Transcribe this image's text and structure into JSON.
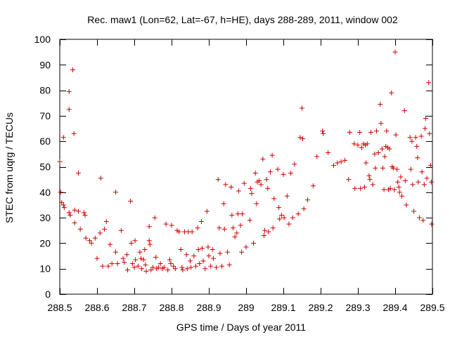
{
  "chart_data": {
    "type": "scatter",
    "title": "Rec. maw1 (Lon=62, Lat=-67, h=HE), days 288-289, 2011, window 002",
    "xlabel": "GPS time / Days of year 2011",
    "ylabel": "STEC from uqrg / TECUs",
    "xlim": [
      288.5,
      289.5
    ],
    "ylim": [
      0,
      100
    ],
    "xticks": [
      288.5,
      288.6,
      288.7,
      288.8,
      288.9,
      289.0,
      289.1,
      289.2,
      289.3,
      289.4,
      289.5
    ],
    "xtick_labels": [
      "288.5",
      "288.6",
      "288.7",
      "288.8",
      "288.9",
      "289",
      "289.1",
      "289.2",
      "289.3",
      "289.4",
      "289.5"
    ],
    "yticks": [
      0,
      10,
      20,
      30,
      40,
      50,
      60,
      70,
      80,
      90,
      100
    ],
    "ytick_labels": [
      "0",
      "10",
      "20",
      "30",
      "40",
      "50",
      "60",
      "70",
      "80",
      "90",
      "100"
    ],
    "grid": false,
    "marker": "+",
    "marker_color": "#cc0000",
    "points": [
      [
        288.5,
        52
      ],
      [
        288.502,
        40
      ],
      [
        288.505,
        36
      ],
      [
        288.51,
        61.5
      ],
      [
        288.51,
        35
      ],
      [
        288.512,
        34
      ],
      [
        288.525,
        79.5
      ],
      [
        288.525,
        72.5
      ],
      [
        288.525,
        32
      ],
      [
        288.528,
        31
      ],
      [
        288.535,
        88
      ],
      [
        288.538,
        63
      ],
      [
        288.54,
        33
      ],
      [
        288.54,
        28
      ],
      [
        288.55,
        47.5
      ],
      [
        288.55,
        32.5
      ],
      [
        288.555,
        25.5
      ],
      [
        288.565,
        32
      ],
      [
        288.568,
        31
      ],
      [
        288.57,
        22
      ],
      [
        288.58,
        21
      ],
      [
        288.585,
        20
      ],
      [
        288.595,
        22
      ],
      [
        288.6,
        14
      ],
      [
        288.608,
        24
      ],
      [
        288.61,
        45.5
      ],
      [
        288.615,
        11
      ],
      [
        288.62,
        25.5
      ],
      [
        288.625,
        28.5
      ],
      [
        288.63,
        11
      ],
      [
        288.635,
        19.5
      ],
      [
        288.64,
        12
      ],
      [
        288.65,
        40
      ],
      [
        288.65,
        16.5
      ],
      [
        288.655,
        12
      ],
      [
        288.665,
        25
      ],
      [
        288.67,
        14
      ],
      [
        288.673,
        12.5
      ],
      [
        288.68,
        15.5
      ],
      [
        288.682,
        9.5
      ],
      [
        288.69,
        36.5
      ],
      [
        288.692,
        20
      ],
      [
        288.695,
        12
      ],
      [
        288.7,
        10.5
      ],
      [
        288.702,
        21
      ],
      [
        288.703,
        13.5
      ],
      [
        288.71,
        11
      ],
      [
        288.715,
        16.5
      ],
      [
        288.718,
        14
      ],
      [
        288.72,
        10
      ],
      [
        288.725,
        13.5
      ],
      [
        288.728,
        17.5
      ],
      [
        288.73,
        11.5
      ],
      [
        288.732,
        9
      ],
      [
        288.74,
        26.5
      ],
      [
        288.74,
        21
      ],
      [
        288.742,
        19.5
      ],
      [
        288.745,
        9.5
      ],
      [
        288.75,
        10.5
      ],
      [
        288.755,
        30
      ],
      [
        288.758,
        14.5
      ],
      [
        288.76,
        10
      ],
      [
        288.765,
        10.5
      ],
      [
        288.77,
        12
      ],
      [
        288.775,
        10
      ],
      [
        288.78,
        10.5
      ],
      [
        288.785,
        27.5
      ],
      [
        288.79,
        9.5
      ],
      [
        288.795,
        13.5
      ],
      [
        288.798,
        12
      ],
      [
        288.8,
        27
      ],
      [
        288.805,
        11
      ],
      [
        288.81,
        10
      ],
      [
        288.815,
        25
      ],
      [
        288.82,
        24.5
      ],
      [
        288.825,
        17.5
      ],
      [
        288.828,
        10.5
      ],
      [
        288.83,
        9.5
      ],
      [
        288.835,
        24.5
      ],
      [
        288.84,
        15.5
      ],
      [
        288.842,
        10
      ],
      [
        288.845,
        24.5
      ],
      [
        288.85,
        13
      ],
      [
        288.852,
        10.5
      ],
      [
        288.855,
        24.5
      ],
      [
        288.86,
        15
      ],
      [
        288.865,
        11
      ],
      [
        288.87,
        26
      ],
      [
        288.872,
        17.5
      ],
      [
        288.875,
        12
      ],
      [
        288.88,
        28.5
      ],
      [
        288.882,
        18
      ],
      [
        288.885,
        13
      ],
      [
        288.89,
        10
      ],
      [
        288.895,
        32.5
      ],
      [
        288.898,
        18.5
      ],
      [
        288.9,
        15
      ],
      [
        288.905,
        11
      ],
      [
        288.91,
        17.5
      ],
      [
        288.912,
        14
      ],
      [
        288.92,
        10.5
      ],
      [
        288.925,
        45
      ],
      [
        288.928,
        26
      ],
      [
        288.93,
        16
      ],
      [
        288.935,
        11
      ],
      [
        288.94,
        35.5
      ],
      [
        288.942,
        25.5
      ],
      [
        288.945,
        43
      ],
      [
        288.95,
        16.5
      ],
      [
        288.955,
        11.5
      ],
      [
        288.96,
        42
      ],
      [
        288.962,
        31
      ],
      [
        288.965,
        26
      ],
      [
        288.97,
        22.5
      ],
      [
        288.975,
        24
      ],
      [
        288.978,
        31.5
      ],
      [
        288.98,
        40.5
      ],
      [
        288.985,
        27
      ],
      [
        288.988,
        16.5
      ],
      [
        288.99,
        31.5
      ],
      [
        288.995,
        43.5
      ],
      [
        289.0,
        18.5
      ],
      [
        289.01,
        29
      ],
      [
        289.012,
        41.5
      ],
      [
        289.015,
        39.5
      ],
      [
        289.02,
        20
      ],
      [
        289.025,
        47.5
      ],
      [
        289.028,
        35.5
      ],
      [
        289.03,
        44
      ],
      [
        289.035,
        44.5
      ],
      [
        289.04,
        43
      ],
      [
        289.045,
        53
      ],
      [
        289.048,
        23
      ],
      [
        289.05,
        25
      ],
      [
        289.055,
        45
      ],
      [
        289.058,
        41.5
      ],
      [
        289.06,
        24.5
      ],
      [
        289.065,
        48
      ],
      [
        289.07,
        54.5
      ],
      [
        289.072,
        26
      ],
      [
        289.075,
        37.5
      ],
      [
        289.085,
        49
      ],
      [
        289.088,
        34
      ],
      [
        289.09,
        29.5
      ],
      [
        289.095,
        31
      ],
      [
        289.1,
        47
      ],
      [
        289.102,
        30
      ],
      [
        289.11,
        38.5
      ],
      [
        289.115,
        27.5
      ],
      [
        289.12,
        47.5
      ],
      [
        289.125,
        30
      ],
      [
        289.13,
        51
      ],
      [
        289.14,
        31.5
      ],
      [
        289.145,
        61.5
      ],
      [
        289.15,
        73
      ],
      [
        289.152,
        61
      ],
      [
        289.155,
        33.5
      ],
      [
        289.165,
        37
      ],
      [
        289.18,
        42.5
      ],
      [
        289.19,
        54
      ],
      [
        289.205,
        64
      ],
      [
        289.207,
        63
      ],
      [
        289.22,
        55.5
      ],
      [
        289.235,
        50.5
      ],
      [
        289.245,
        51.5
      ],
      [
        289.255,
        52
      ],
      [
        289.265,
        52.5
      ],
      [
        289.275,
        45
      ],
      [
        289.278,
        63.5
      ],
      [
        289.29,
        59
      ],
      [
        289.292,
        41.5
      ],
      [
        289.3,
        58.5
      ],
      [
        289.305,
        63.5
      ],
      [
        289.307,
        41.5
      ],
      [
        289.31,
        57.5
      ],
      [
        289.315,
        59
      ],
      [
        289.318,
        42
      ],
      [
        289.32,
        58.5
      ],
      [
        289.322,
        51.5
      ],
      [
        289.325,
        59
      ],
      [
        289.33,
        46.5
      ],
      [
        289.332,
        45
      ],
      [
        289.335,
        63.5
      ],
      [
        289.34,
        43
      ],
      [
        289.345,
        55
      ],
      [
        289.347,
        49.5
      ],
      [
        289.35,
        64
      ],
      [
        289.355,
        55.5
      ],
      [
        289.36,
        74.5
      ],
      [
        289.362,
        67
      ],
      [
        289.365,
        57
      ],
      [
        289.367,
        49.5
      ],
      [
        289.37,
        41
      ],
      [
        289.372,
        54
      ],
      [
        289.375,
        58
      ],
      [
        289.377,
        64
      ],
      [
        289.38,
        57.5
      ],
      [
        289.382,
        41
      ],
      [
        289.385,
        57
      ],
      [
        289.387,
        41.5
      ],
      [
        289.39,
        79
      ],
      [
        289.392,
        50
      ],
      [
        289.395,
        49.5
      ],
      [
        289.398,
        41
      ],
      [
        289.4,
        95
      ],
      [
        289.402,
        62.5
      ],
      [
        289.405,
        49
      ],
      [
        289.407,
        44
      ],
      [
        289.41,
        42
      ],
      [
        289.412,
        40
      ],
      [
        289.415,
        46
      ],
      [
        289.418,
        38.5
      ],
      [
        289.425,
        72
      ],
      [
        289.427,
        44.5
      ],
      [
        289.43,
        35
      ],
      [
        289.44,
        61.5
      ],
      [
        289.442,
        49
      ],
      [
        289.445,
        60
      ],
      [
        289.447,
        43
      ],
      [
        289.45,
        32.5
      ],
      [
        289.455,
        61.5
      ],
      [
        289.458,
        58
      ],
      [
        289.46,
        53.5
      ],
      [
        289.462,
        44
      ],
      [
        289.465,
        30
      ],
      [
        289.47,
        62
      ],
      [
        289.472,
        48
      ],
      [
        289.475,
        29
      ],
      [
        289.478,
        43
      ],
      [
        289.48,
        65
      ],
      [
        289.482,
        69
      ],
      [
        289.485,
        45.5
      ],
      [
        289.49,
        83
      ],
      [
        289.492,
        63
      ],
      [
        289.495,
        50.5
      ],
      [
        289.497,
        44
      ],
      [
        289.498,
        27.5
      ]
    ]
  }
}
